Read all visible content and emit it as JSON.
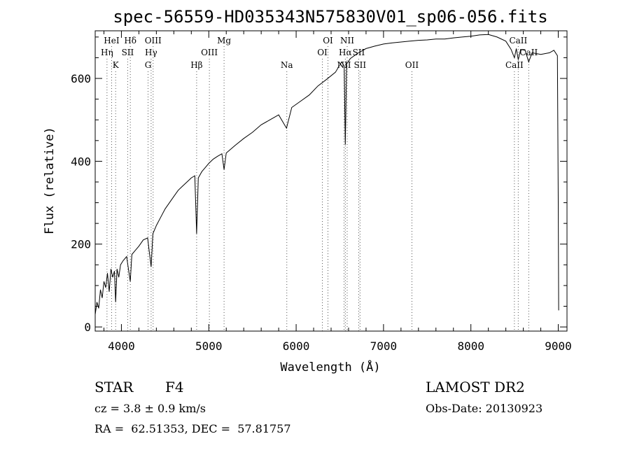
{
  "chart_data": {
    "type": "line",
    "title": "spec-56559-HD035343N575830V01_sp06-056.fits",
    "xlabel": "Wavelength (Å)",
    "ylabel": "Flux (relative)",
    "xlim": [
      3700,
      9100
    ],
    "ylim": [
      -10,
      715
    ],
    "xticks": [
      4000,
      5000,
      6000,
      7000,
      8000,
      9000
    ],
    "yticks": [
      0,
      200,
      400,
      600
    ],
    "grid": false,
    "series": [
      {
        "values": [
          [
            3700,
            30
          ],
          [
            3720,
            60
          ],
          [
            3740,
            45
          ],
          [
            3760,
            90
          ],
          [
            3780,
            70
          ],
          [
            3800,
            110
          ],
          [
            3820,
            95
          ],
          [
            3840,
            130
          ],
          [
            3860,
            85
          ],
          [
            3880,
            140
          ],
          [
            3900,
            120
          ],
          [
            3920,
            135
          ],
          [
            3934,
            60
          ],
          [
            3950,
            140
          ],
          [
            3970,
            120
          ],
          [
            3990,
            150
          ],
          [
            4020,
            160
          ],
          [
            4060,
            170
          ],
          [
            4101,
            110
          ],
          [
            4120,
            175
          ],
          [
            4160,
            185
          ],
          [
            4200,
            195
          ],
          [
            4250,
            210
          ],
          [
            4300,
            215
          ],
          [
            4340,
            145
          ],
          [
            4360,
            225
          ],
          [
            4400,
            245
          ],
          [
            4450,
            265
          ],
          [
            4500,
            285
          ],
          [
            4550,
            300
          ],
          [
            4600,
            315
          ],
          [
            4650,
            330
          ],
          [
            4700,
            340
          ],
          [
            4750,
            350
          ],
          [
            4800,
            360
          ],
          [
            4840,
            365
          ],
          [
            4861,
            225
          ],
          [
            4880,
            360
          ],
          [
            4920,
            375
          ],
          [
            4960,
            385
          ],
          [
            5000,
            395
          ],
          [
            5050,
            405
          ],
          [
            5100,
            412
          ],
          [
            5150,
            418
          ],
          [
            5175,
            380
          ],
          [
            5200,
            420
          ],
          [
            5300,
            438
          ],
          [
            5400,
            455
          ],
          [
            5500,
            470
          ],
          [
            5600,
            488
          ],
          [
            5700,
            500
          ],
          [
            5800,
            512
          ],
          [
            5890,
            480
          ],
          [
            5950,
            530
          ],
          [
            6050,
            545
          ],
          [
            6150,
            560
          ],
          [
            6250,
            582
          ],
          [
            6350,
            598
          ],
          [
            6450,
            615
          ],
          [
            6520,
            640
          ],
          [
            6550,
            630
          ],
          [
            6563,
            440
          ],
          [
            6578,
            635
          ],
          [
            6620,
            648
          ],
          [
            6700,
            660
          ],
          [
            6800,
            672
          ],
          [
            6900,
            678
          ],
          [
            7000,
            683
          ],
          [
            7100,
            686
          ],
          [
            7200,
            688
          ],
          [
            7300,
            690
          ],
          [
            7400,
            692
          ],
          [
            7500,
            693
          ],
          [
            7600,
            695
          ],
          [
            7700,
            695
          ],
          [
            7800,
            698
          ],
          [
            7900,
            700
          ],
          [
            8000,
            702
          ],
          [
            8100,
            705
          ],
          [
            8200,
            706
          ],
          [
            8300,
            700
          ],
          [
            8400,
            690
          ],
          [
            8460,
            670
          ],
          [
            8498,
            650
          ],
          [
            8520,
            672
          ],
          [
            8542,
            645
          ],
          [
            8570,
            670
          ],
          [
            8620,
            668
          ],
          [
            8662,
            640
          ],
          [
            8700,
            662
          ],
          [
            8800,
            658
          ],
          [
            8900,
            662
          ],
          [
            8950,
            668
          ],
          [
            8990,
            655
          ],
          [
            9000,
            300
          ],
          [
            9005,
            40
          ]
        ]
      }
    ],
    "lines": [
      {
        "name": "HeI",
        "x": 3888,
        "row": 1
      },
      {
        "name": "Hη",
        "x": 3835,
        "row": 2
      },
      {
        "name": "K",
        "x": 3934,
        "row": 3
      },
      {
        "name": "Hδ",
        "x": 4102,
        "row": 1
      },
      {
        "name": "SII",
        "x": 4072,
        "row": 2
      },
      {
        "name": "OIII",
        "x": 4363,
        "row": 1
      },
      {
        "name": "Hγ",
        "x": 4340,
        "row": 2
      },
      {
        "name": "G",
        "x": 4305,
        "row": 3
      },
      {
        "name": "Hβ",
        "x": 4861,
        "row": 3
      },
      {
        "name": "Mg",
        "x": 5175,
        "row": 1
      },
      {
        "name": "OIII",
        "x": 5007,
        "row": 2
      },
      {
        "name": "Na",
        "x": 5893,
        "row": 3
      },
      {
        "name": "OI",
        "x": 6364,
        "row": 1
      },
      {
        "name": "OI",
        "x": 6300,
        "row": 2
      },
      {
        "name": "NII",
        "x": 6584,
        "row": 1
      },
      {
        "name": "Hα",
        "x": 6563,
        "row": 2
      },
      {
        "name": "NII",
        "x": 6548,
        "row": 3
      },
      {
        "name": "SII",
        "x": 6716,
        "row": 2
      },
      {
        "name": "SII",
        "x": 6731,
        "row": 3
      },
      {
        "name": "OII",
        "x": 7325,
        "row": 3
      },
      {
        "name": "CaII",
        "x": 8542,
        "row": 1
      },
      {
        "name": "CaII",
        "x": 8662,
        "row": 2
      },
      {
        "name": "CaII",
        "x": 8498,
        "row": 3
      }
    ]
  },
  "footer": {
    "object_type": "STAR",
    "subclass": "F4",
    "survey": "LAMOST DR2",
    "cz": "cz = 3.8 ± 0.9 km/s",
    "obs_date": "Obs-Date: 20130923",
    "coords": "RA =  62.51353, DEC =  57.81757"
  }
}
